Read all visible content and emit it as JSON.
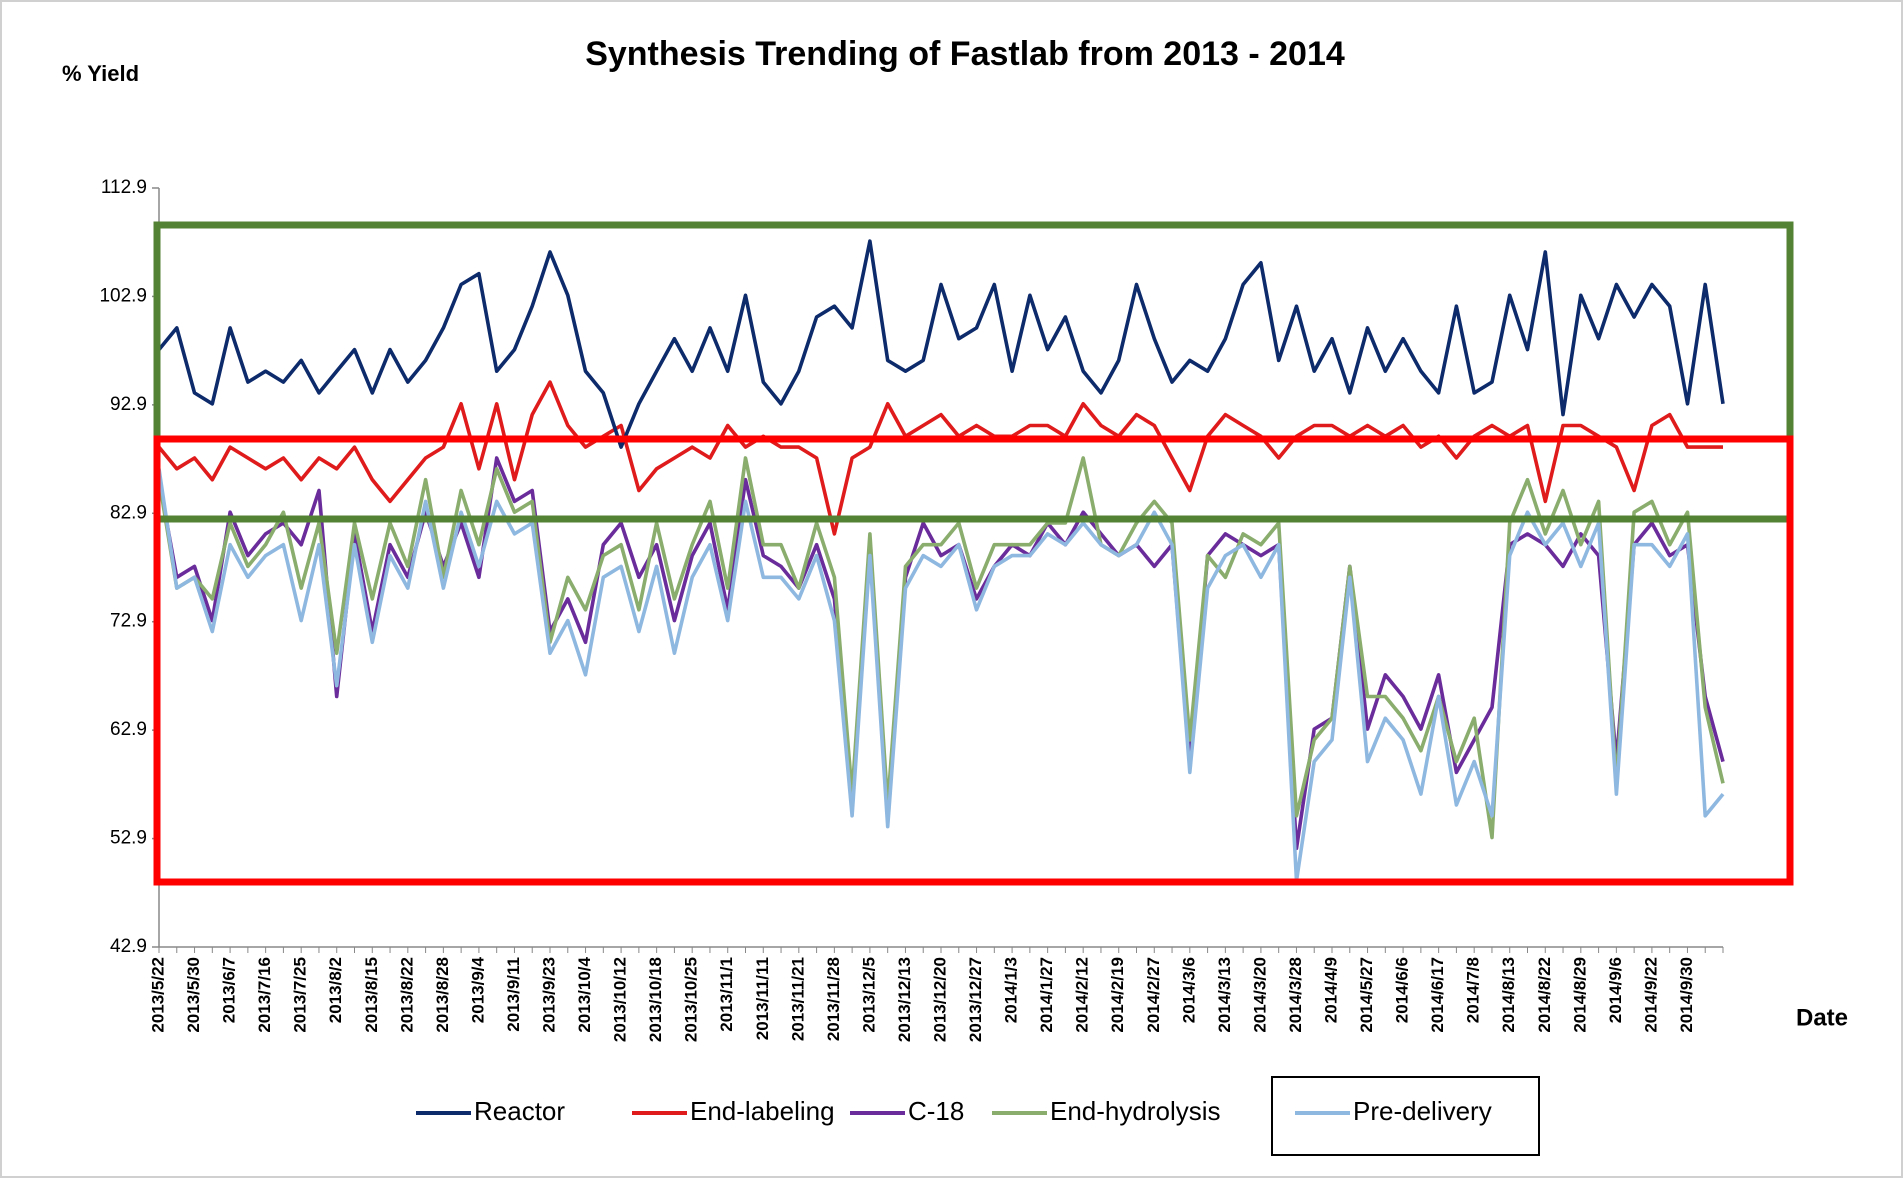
{
  "chart_data": {
    "type": "line",
    "title": "Synthesis Trending of Fastlab from 2013 - 2014",
    "y_label": "% Yield",
    "x_label": "Date",
    "categories": [
      "2013/5/22",
      null,
      "2013/5/30",
      null,
      "2013/6/7",
      null,
      "2013/7/16",
      null,
      "2013/7/25",
      null,
      "2013/8/2",
      null,
      "2013/8/15",
      null,
      "2013/8/22",
      null,
      "2013/8/28",
      null,
      "2013/9/4",
      null,
      "2013/9/11",
      null,
      "2013/9/23",
      null,
      "2013/10/4",
      null,
      "2013/10/12",
      null,
      "2013/10/18",
      null,
      "2013/10/25",
      null,
      "2013/11/1",
      null,
      "2013/11/11",
      null,
      "2013/11/21",
      null,
      "2013/11/28",
      null,
      "2013/12/5",
      null,
      "2013/12/13",
      null,
      "2013/12/20",
      null,
      "2013/12/27",
      null,
      "2014/1/3",
      null,
      "2014/1/27",
      null,
      "2014/2/12",
      null,
      "2014/2/19",
      null,
      "2014/2/27",
      null,
      "2014/3/6",
      null,
      "2014/3/13",
      null,
      "2014/3/20",
      null,
      "2014/3/28",
      null,
      "2014/4/9",
      null,
      "2014/5/27",
      null,
      "2014/6/6",
      null,
      "2014/6/17",
      null,
      "2014/7/8",
      null,
      "2014/8/13",
      null,
      "2014/8/22",
      null,
      "2014/8/29",
      null,
      "2014/9/6",
      null,
      "2014/9/22",
      null,
      "2014/9/30",
      null,
      null
    ],
    "series": [
      {
        "name": "C-18",
        "color": "#6a2c9a",
        "values": [
          86,
          77,
          78,
          73,
          83,
          79,
          81,
          82,
          80,
          85,
          66,
          81,
          72,
          80,
          77,
          83,
          78,
          82,
          77,
          88,
          84,
          85,
          72,
          75,
          71,
          80,
          82,
          77,
          80,
          73,
          79,
          82,
          74,
          86,
          79,
          78,
          76,
          80,
          75,
          56,
          80,
          55,
          77,
          82,
          79,
          80,
          75,
          78,
          80,
          79,
          82,
          80,
          83,
          81,
          79,
          80,
          78,
          80,
          60,
          79,
          81,
          80,
          79,
          80,
          52,
          63,
          64,
          78,
          63,
          68,
          66,
          63,
          68,
          59,
          62,
          65,
          80,
          81,
          80,
          78,
          81,
          79,
          60,
          80,
          82,
          79,
          80,
          66,
          60
        ]
      },
      {
        "name": "End-hydrolysis",
        "color": "#8aad6e",
        "values": [
          86,
          76,
          77,
          75,
          82,
          78,
          80,
          83,
          76,
          82,
          70,
          82,
          75,
          82,
          78,
          86,
          77,
          85,
          80,
          87,
          83,
          84,
          71,
          77,
          74,
          79,
          80,
          74,
          82,
          75,
          80,
          84,
          76,
          88,
          80,
          80,
          76,
          82,
          77,
          57,
          81,
          56,
          78,
          80,
          80,
          82,
          76,
          80,
          80,
          80,
          82,
          82,
          88,
          80,
          79,
          82,
          84,
          82,
          62,
          79,
          77,
          81,
          80,
          82,
          55,
          62,
          64,
          78,
          66,
          66,
          64,
          61,
          66,
          60,
          64,
          53,
          82,
          86,
          81,
          85,
          80,
          84,
          58,
          83,
          84,
          80,
          83,
          65,
          58
        ]
      },
      {
        "name": "Pre-delivery",
        "color": "#8fb8e0",
        "values": [
          87,
          76,
          77,
          72,
          80,
          77,
          79,
          80,
          73,
          80,
          67,
          80,
          71,
          79,
          76,
          84,
          76,
          83,
          78,
          84,
          81,
          82,
          70,
          73,
          68,
          77,
          78,
          72,
          78,
          70,
          77,
          80,
          73,
          84,
          77,
          77,
          75,
          79,
          73,
          55,
          79,
          54,
          76,
          79,
          78,
          80,
          74,
          78,
          79,
          79,
          81,
          80,
          82,
          80,
          79,
          80,
          83,
          80,
          59,
          76,
          79,
          80,
          77,
          80,
          49,
          60,
          62,
          77,
          60,
          64,
          62,
          57,
          66,
          56,
          60,
          55,
          79,
          83,
          80,
          82,
          78,
          82,
          57,
          80,
          80,
          78,
          81,
          55,
          57
        ]
      },
      {
        "name": "End-labeling",
        "color": "#e01b1b",
        "values": [
          89,
          87,
          88,
          86,
          89,
          88,
          87,
          88,
          86,
          88,
          87,
          89,
          86,
          84,
          86,
          88,
          89,
          93,
          87,
          93,
          86,
          92,
          95,
          91,
          89,
          90,
          91,
          85,
          87,
          88,
          89,
          88,
          91,
          89,
          90,
          89,
          89,
          88,
          81,
          88,
          89,
          93,
          90,
          91,
          92,
          90,
          91,
          90,
          90,
          91,
          91,
          90,
          93,
          91,
          90,
          92,
          91,
          88,
          85,
          90,
          92,
          91,
          90,
          88,
          90,
          91,
          91,
          90,
          91,
          90,
          91,
          89,
          90,
          88,
          90,
          91,
          90,
          91,
          84,
          91,
          91,
          90,
          89,
          85,
          91,
          92,
          89,
          89,
          89
        ]
      },
      {
        "name": "Reactor",
        "color": "#0d2a6b",
        "values": [
          98,
          100,
          94,
          93,
          100,
          95,
          96,
          95,
          97,
          94,
          96,
          98,
          94,
          98,
          95,
          97,
          100,
          104,
          105,
          96,
          98,
          102,
          107,
          103,
          96,
          94,
          89,
          93,
          96,
          99,
          96,
          100,
          96,
          103,
          95,
          93,
          96,
          101,
          102,
          100,
          108,
          97,
          96,
          97,
          104,
          99,
          100,
          104,
          96,
          103,
          98,
          101,
          96,
          94,
          97,
          104,
          99,
          95,
          97,
          96,
          99,
          104,
          106,
          97,
          102,
          96,
          99,
          94,
          100,
          96,
          99,
          96,
          94,
          102,
          94,
          95,
          103,
          98,
          107,
          92,
          103,
          99,
          104,
          101,
          104,
          102,
          93,
          104,
          93
        ]
      }
    ],
    "legend_order": [
      4,
      3,
      0,
      1,
      2
    ],
    "ylim": [
      42.9,
      112.9
    ],
    "yticks": [
      42.9,
      52.9,
      62.9,
      72.9,
      82.9,
      92.9,
      102.9,
      112.9
    ],
    "grid": false
  }
}
